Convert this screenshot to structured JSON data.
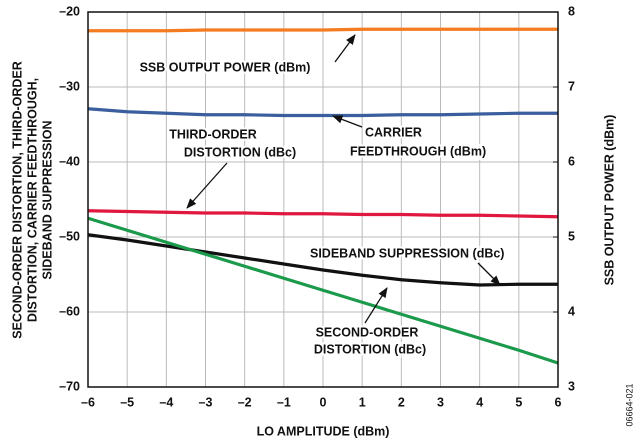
{
  "chart_data": {
    "type": "line",
    "x_label": "LO AMPLITUDE (dBm)",
    "y_label": [
      "SECOND-ORDER DISTORTION, THIRD-ORDER",
      "DISTORTION, CARRIER FEEDTHROUGH,",
      "SIDEBAND SUPPRESSION"
    ],
    "y2_label": "SSB OUTPUT POWER (dBm)",
    "figure_id": "06664-021",
    "x": [
      -6,
      -5,
      -4,
      -3,
      -2,
      -1,
      0,
      1,
      2,
      3,
      4,
      5,
      6
    ],
    "xlim": [
      -6,
      6
    ],
    "xticks": [
      {
        "value": -6,
        "label": "–6"
      },
      {
        "value": -5,
        "label": "–5"
      },
      {
        "value": -4,
        "label": "–4"
      },
      {
        "value": -3,
        "label": "–3"
      },
      {
        "value": -2,
        "label": "–2"
      },
      {
        "value": -1,
        "label": "–1"
      },
      0,
      1,
      2,
      3,
      4,
      5,
      6
    ],
    "ylim": [
      -70,
      -20
    ],
    "yticks": [
      {
        "value": -70,
        "label": "–70"
      },
      {
        "value": -60,
        "label": "–60"
      },
      {
        "value": -50,
        "label": "–50"
      },
      {
        "value": -40,
        "label": "–40"
      },
      {
        "value": -30,
        "label": "–30"
      },
      {
        "value": -20,
        "label": "–20"
      }
    ],
    "y2lim": [
      3,
      8
    ],
    "y2ticks": [
      3,
      4,
      5,
      6,
      7,
      8
    ],
    "grid": true,
    "series": [
      {
        "name": [
          "SSB OUTPUT POWER (dBm)"
        ],
        "color": "#f47b20",
        "axis": "y2",
        "values": [
          7.75,
          7.75,
          7.75,
          7.76,
          7.76,
          7.76,
          7.76,
          7.77,
          7.77,
          7.77,
          7.77,
          7.77,
          7.77
        ]
      },
      {
        "name": [
          "CARRIER",
          "FEEDTHROUGH (dBm)"
        ],
        "color": "#3b5f9e",
        "values": [
          -32.9,
          -33.3,
          -33.5,
          -33.7,
          -33.7,
          -33.8,
          -33.8,
          -33.8,
          -33.7,
          -33.7,
          -33.6,
          -33.5,
          -33.5
        ]
      },
      {
        "name": [
          "THIRD-ORDER",
          "DISTORTION (dBc)"
        ],
        "color": "#e0173f",
        "values": [
          -46.5,
          -46.6,
          -46.7,
          -46.8,
          -46.8,
          -46.9,
          -46.9,
          -47.0,
          -47.0,
          -47.1,
          -47.1,
          -47.2,
          -47.3
        ]
      },
      {
        "name": [
          "SIDEBAND SUPPRESSION (dBc)"
        ],
        "color": "#111111",
        "values": [
          -49.7,
          -50.4,
          -51.2,
          -52.0,
          -52.8,
          -53.6,
          -54.4,
          -55.1,
          -55.7,
          -56.1,
          -56.4,
          -56.3,
          -56.3
        ]
      },
      {
        "name": [
          "SECOND-ORDER",
          "DISTORTION (dBc)"
        ],
        "color": "#1a9a4a",
        "values": [
          -47.5,
          -49.1,
          -50.7,
          -52.3,
          -53.9,
          -55.5,
          -57.1,
          -58.7,
          -60.3,
          -61.9,
          -63.5,
          -65.1,
          -66.8
        ]
      }
    ]
  }
}
